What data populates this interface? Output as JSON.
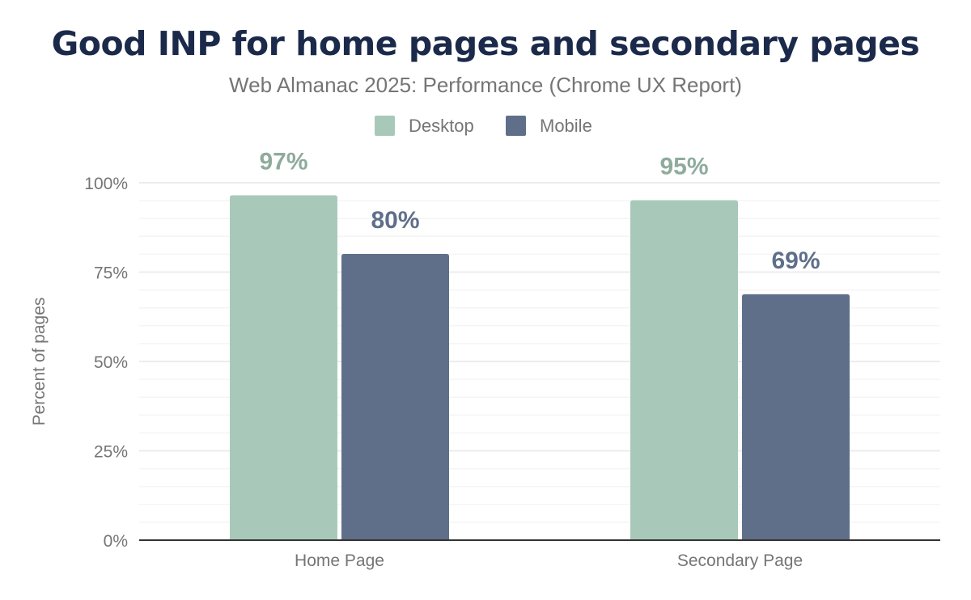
{
  "chart_data": {
    "type": "bar",
    "title": "Good INP for home pages and secondary pages",
    "subtitle": "Web Almanac 2025: Performance (Chrome UX Report)",
    "xlabel": "",
    "ylabel": "Percent of pages",
    "ylim": [
      0,
      100
    ],
    "yticks": [
      "0%",
      "25%",
      "50%",
      "75%",
      "100%"
    ],
    "grid": true,
    "legend_placement": "top",
    "categories": [
      "Home Page",
      "Secondary Page"
    ],
    "series": [
      {
        "name": "Desktop",
        "values": [
          96.5,
          95.1
        ],
        "labels": [
          "97%",
          "95%"
        ],
        "color": "#a8c9b9",
        "label_color": "#8eab9c"
      },
      {
        "name": "Mobile",
        "values": [
          80.1,
          68.8
        ],
        "labels": [
          "80%",
          "69%"
        ],
        "color": "#5f6f8a",
        "label_color": "#5f6f8a"
      }
    ]
  }
}
